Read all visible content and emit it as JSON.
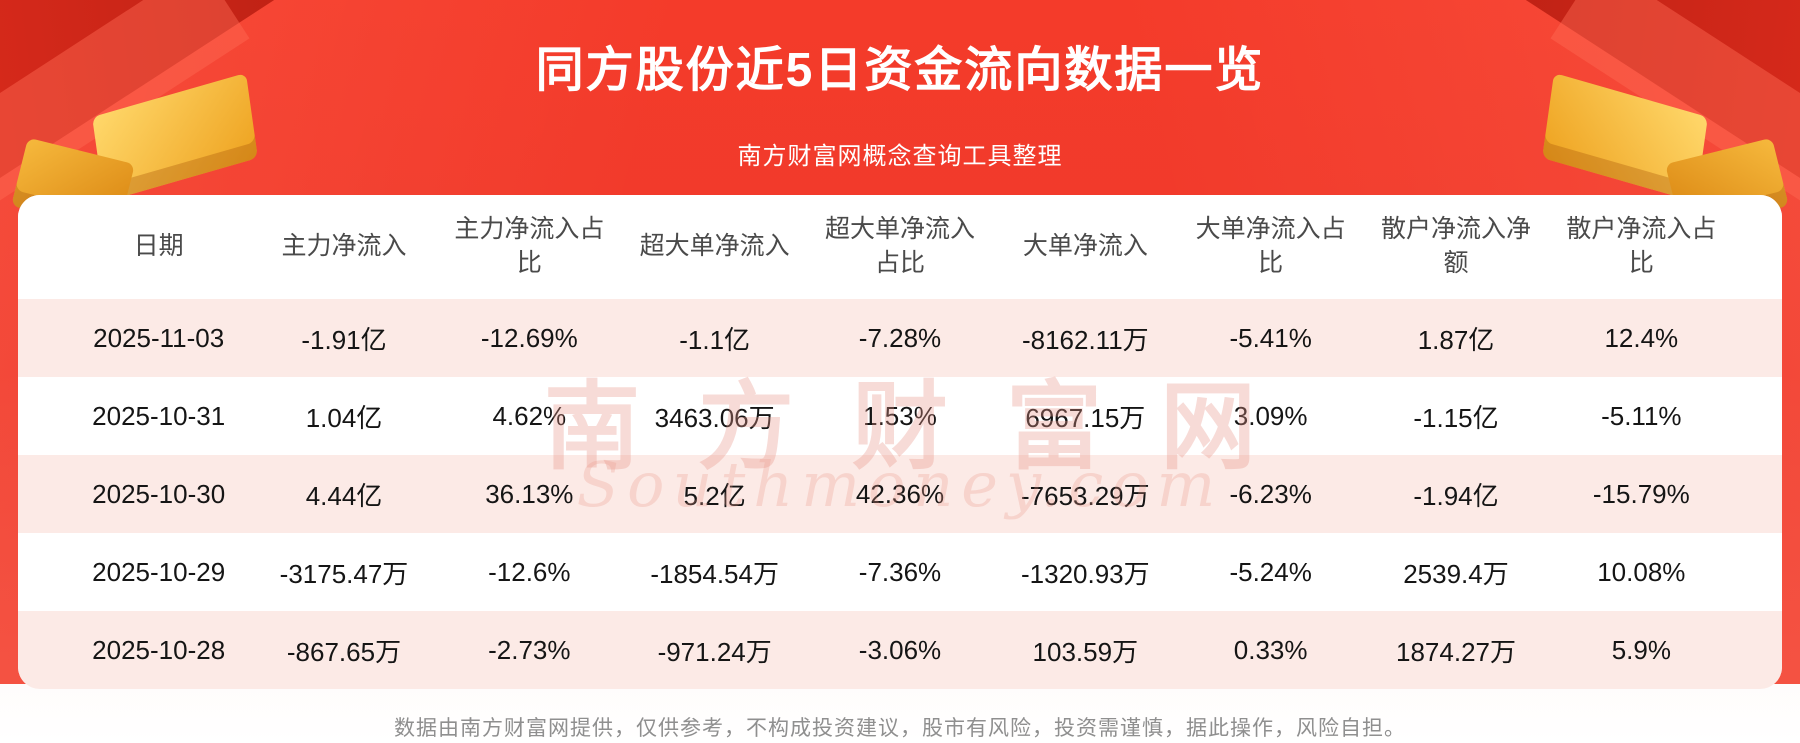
{
  "header": {
    "title": "同方股份近5日资金流向数据一览",
    "subtitle": "南方财富网概念查询工具整理"
  },
  "chart_data": {
    "type": "table",
    "title": "同方股份近5日资金流向数据一览",
    "columns": [
      "日期",
      "主力净流入",
      "主力净流入占比",
      "超大单净流入",
      "超大单净流入占比",
      "大单净流入",
      "大单净流入占比",
      "散户净流入净额",
      "散户净流入占比"
    ],
    "rows": [
      [
        "2025-11-03",
        "-1.91亿",
        "-12.69%",
        "-1.1亿",
        "-7.28%",
        "-8162.11万",
        "-5.41%",
        "1.87亿",
        "12.4%"
      ],
      [
        "2025-10-31",
        "1.04亿",
        "4.62%",
        "3463.06万",
        "1.53%",
        "6967.15万",
        "3.09%",
        "-1.15亿",
        "-5.11%"
      ],
      [
        "2025-10-30",
        "4.44亿",
        "36.13%",
        "5.2亿",
        "42.36%",
        "-7653.29万",
        "-6.23%",
        "-1.94亿",
        "-15.79%"
      ],
      [
        "2025-10-29",
        "-3175.47万",
        "-12.6%",
        "-1854.54万",
        "-7.36%",
        "-1320.93万",
        "-5.24%",
        "2539.4万",
        "10.08%"
      ],
      [
        "2025-10-28",
        "-867.65万",
        "-2.73%",
        "-971.24万",
        "-3.06%",
        "103.59万",
        "0.33%",
        "1874.27万",
        "5.9%"
      ]
    ]
  },
  "watermark": {
    "text": "南方财富网",
    "script": "Southmoney.com"
  },
  "footer": {
    "disclaimer": "数据由南方财富网提供，仅供参考，不构成投资建议，股市有风险，投资需谨慎，据此操作，风险自担。"
  },
  "colors": {
    "banner_red": "#f23a2b",
    "ribbon_dark_red": "#c9271a",
    "gift_gold": "#eea21f",
    "row_pink": "#fceae6",
    "row_white": "#ffffff",
    "text_dark": "#151515",
    "header_text": "#4a4a4a",
    "footer_gray": "#8f8f8f"
  }
}
